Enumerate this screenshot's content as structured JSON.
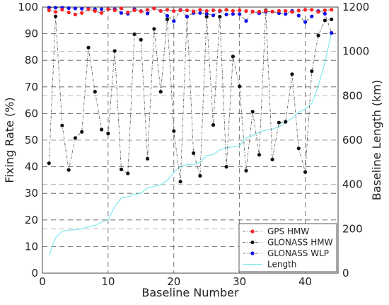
{
  "chart_data": {
    "type": "line",
    "xlabel": "Baseline Number",
    "ylabel_left": "Fixing Rate (%)",
    "ylabel_right": "Baseline Length (km)",
    "xlim": [
      0,
      45
    ],
    "ylim_left": [
      0,
      100
    ],
    "ylim_right": [
      0,
      1200
    ],
    "x_ticks": [
      0,
      10,
      20,
      30,
      40
    ],
    "y_ticks_left": [
      0,
      10,
      20,
      30,
      40,
      50,
      60,
      70,
      80,
      90,
      100
    ],
    "y_ticks_right": [
      0,
      200,
      400,
      600,
      800,
      1000,
      1200
    ],
    "grid": true,
    "legend_position": "bottom-right",
    "x": [
      1,
      2,
      3,
      4,
      5,
      6,
      7,
      8,
      9,
      10,
      11,
      12,
      13,
      14,
      15,
      16,
      17,
      18,
      19,
      20,
      21,
      22,
      23,
      24,
      25,
      26,
      27,
      28,
      29,
      30,
      31,
      32,
      33,
      34,
      35,
      36,
      37,
      38,
      39,
      40,
      41,
      42,
      43,
      44
    ],
    "series": [
      {
        "name": "GPS HMW",
        "axis": "left",
        "color": "#ff2020",
        "style": "dashed-dot",
        "values": [
          98.8,
          98.2,
          99.0,
          98.0,
          97.2,
          97.8,
          99.2,
          98.5,
          97.8,
          99.2,
          98.8,
          99.5,
          98.0,
          98.8,
          98.4,
          99.0,
          99.5,
          98.6,
          99.0,
          98.5,
          98.8,
          98.8,
          98.4,
          99.0,
          98.6,
          98.8,
          98.7,
          99.0,
          98.6,
          98.8,
          98.5,
          98.3,
          98.3,
          98.6,
          98.3,
          98.6,
          98.6,
          98.2,
          98.7,
          99.0,
          99.0,
          98.2,
          98.8,
          99.0
        ]
      },
      {
        "name": "GLONASS HMW",
        "axis": "left",
        "color": "#111111",
        "style": "dashed-dot",
        "values": [
          41.3,
          96.5,
          55.5,
          38.8,
          50.8,
          53.1,
          84.8,
          68.2,
          54.0,
          52.5,
          83.5,
          39.0,
          37.5,
          89.8,
          87.7,
          43.0,
          91.8,
          68.2,
          95.4,
          53.4,
          34.4,
          96.4,
          45.1,
          36.6,
          96.4,
          55.7,
          96.4,
          40.0,
          81.4,
          70.2,
          38.5,
          60.7,
          44.5,
          98.8,
          42.7,
          56.6,
          56.9,
          74.8,
          46.9,
          38.0,
          75.9,
          89.3,
          95.0,
          95.4
        ]
      },
      {
        "name": "GLONASS WLP",
        "axis": "left",
        "color": "#1010ee",
        "style": "dashed-dot",
        "values": [
          99.8,
          99.8,
          99.8,
          99.6,
          99.5,
          99.4,
          99.4,
          99.2,
          99.2,
          99.2,
          99.2,
          97.8,
          97.5,
          99.2,
          98.5,
          97.6,
          99.5,
          98.6,
          96.7,
          94.7,
          99.0,
          96.5,
          97.8,
          97.8,
          97.5,
          96.9,
          98.5,
          97.2,
          97.4,
          97.4,
          94.8,
          98.3,
          97.7,
          98.2,
          98.3,
          97.7,
          97.4,
          98.6,
          96.8,
          94.4,
          96.5,
          98.5,
          97.5,
          90.3
        ]
      },
      {
        "name": "Length",
        "axis": "right",
        "color": "#7fe9ef",
        "style": "solid",
        "values": [
          80,
          160,
          190,
          194,
          196,
          201,
          210,
          215,
          230,
          240,
          300,
          340,
          344,
          355,
          360,
          385,
          390,
          400,
          418,
          455,
          480,
          490,
          491,
          500,
          530,
          535,
          556,
          565,
          570,
          575,
          610,
          620,
          635,
          645,
          650,
          660,
          680,
          700,
          726,
          740,
          765,
          845,
          950,
          1085
        ]
      }
    ]
  }
}
